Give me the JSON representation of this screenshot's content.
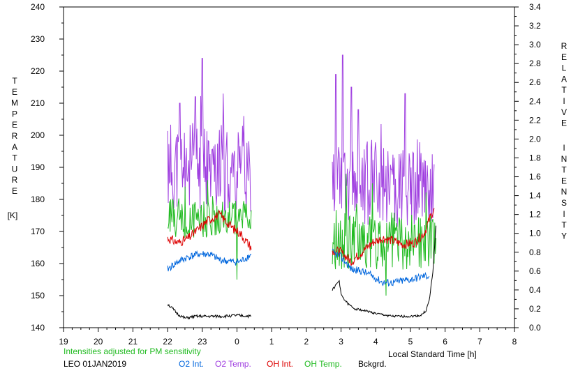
{
  "chart_data": {
    "type": "line",
    "xlabel": "Local Standard Time [h]",
    "ylabel_left": "TEMPERATURE [K]",
    "ylabel_left_letters": [
      "T",
      "E",
      "M",
      "P",
      "E",
      "R",
      "A",
      "T",
      "U",
      "R",
      "E"
    ],
    "ylabel_left_unit": "[K]",
    "ylabel_right": "RELATIVE INTENSITY",
    "ylabel_right_word1": [
      "R",
      "E",
      "L",
      "A",
      "T",
      "I",
      "V",
      "E"
    ],
    "ylabel_right_word2": [
      "I",
      "N",
      "T",
      "E",
      "N",
      "S",
      "I",
      "T",
      "Y"
    ],
    "note": "Intensities adjusted for PM sensitivity",
    "station_date": "LEO 01JAN2019",
    "xticks": [
      19,
      20,
      21,
      22,
      23,
      0,
      1,
      2,
      3,
      4,
      5,
      6,
      7,
      8
    ],
    "x_range_hours": [
      19,
      32
    ],
    "ylim_left": [
      140,
      240
    ],
    "yticks_left": [
      140,
      150,
      160,
      170,
      180,
      190,
      200,
      210,
      220,
      230,
      240
    ],
    "ylim_right": [
      0.0,
      3.4
    ],
    "yticks_right": [
      "0.0",
      "0.2",
      "0.4",
      "0.6",
      "0.8",
      "1.0",
      "1.2",
      "1.4",
      "1.6",
      "1.8",
      "2.0",
      "2.2",
      "2.4",
      "2.6",
      "2.8",
      "3.0",
      "3.2",
      "3.4"
    ],
    "legend": [
      {
        "name": "O2 Int.",
        "color": "#0066dd"
      },
      {
        "name": "O2 Temp.",
        "color": "#a040e0"
      },
      {
        "name": "OH Int.",
        "color": "#dd0000"
      },
      {
        "name": "OH Temp.",
        "color": "#22bb22"
      },
      {
        "name": "Bckgrd.",
        "color": "#000000"
      }
    ],
    "series": [
      {
        "name": "O2 Temp.",
        "color": "#a040e0",
        "axis": "left",
        "segments": [
          {
            "x0": 22.0,
            "x1": 24.42,
            "base": 190,
            "amp": 14,
            "spikes": [
              [
                23.0,
                224
              ],
              [
                22.35,
                210
              ],
              [
                22.8,
                212
              ],
              [
                23.6,
                213
              ],
              [
                24.2,
                206
              ]
            ],
            "seed": 11
          },
          {
            "x0": 26.75,
            "x1": 29.7,
            "base": 185,
            "amp": 14,
            "spikes": [
              [
                27.05,
                225
              ],
              [
                26.85,
                219
              ],
              [
                27.3,
                215
              ],
              [
                28.85,
                213
              ],
              [
                27.5,
                208
              ]
            ],
            "seed": 12
          }
        ]
      },
      {
        "name": "OH Temp.",
        "color": "#22bb22",
        "axis": "left",
        "segments": [
          {
            "x0": 22.0,
            "x1": 24.42,
            "base": 174,
            "amp": 6,
            "spikes": [
              [
                24.0,
                155
              ],
              [
                22.5,
                184
              ],
              [
                23.15,
                186
              ]
            ],
            "seed": 21
          },
          {
            "x0": 26.75,
            "x1": 29.75,
            "base": 167,
            "amp": 9,
            "spikes": [
              [
                27.15,
                188
              ],
              [
                28.3,
                150
              ],
              [
                27.9,
                185
              ]
            ],
            "seed": 22
          }
        ]
      },
      {
        "name": "OH Int.",
        "color": "#dd0000",
        "axis": "right",
        "segments": [
          {
            "x0": 22.0,
            "x1": 24.42,
            "points": [
              [
                22.0,
                0.95
              ],
              [
                22.3,
                0.9
              ],
              [
                22.6,
                0.95
              ],
              [
                22.9,
                1.05
              ],
              [
                23.2,
                1.15
              ],
              [
                23.5,
                1.2
              ],
              [
                23.7,
                1.12
              ],
              [
                23.9,
                1.05
              ],
              [
                24.1,
                1.0
              ],
              [
                24.3,
                0.9
              ],
              [
                24.42,
                0.85
              ]
            ],
            "noise": 0.05,
            "seed": 31
          },
          {
            "x0": 26.75,
            "x1": 29.7,
            "points": [
              [
                26.75,
                0.82
              ],
              [
                27.0,
                0.8
              ],
              [
                27.3,
                0.7
              ],
              [
                27.6,
                0.8
              ],
              [
                27.9,
                0.9
              ],
              [
                28.2,
                0.95
              ],
              [
                28.5,
                0.92
              ],
              [
                28.8,
                0.88
              ],
              [
                29.1,
                0.9
              ],
              [
                29.4,
                1.0
              ],
              [
                29.6,
                1.2
              ],
              [
                29.7,
                1.25
              ]
            ],
            "noise": 0.05,
            "seed": 32
          }
        ]
      },
      {
        "name": "O2 Int.",
        "color": "#0066dd",
        "axis": "right",
        "segments": [
          {
            "x0": 22.0,
            "x1": 24.42,
            "points": [
              [
                22.0,
                0.62
              ],
              [
                22.3,
                0.7
              ],
              [
                22.6,
                0.75
              ],
              [
                22.9,
                0.78
              ],
              [
                23.2,
                0.78
              ],
              [
                23.5,
                0.72
              ],
              [
                23.8,
                0.7
              ],
              [
                24.1,
                0.7
              ],
              [
                24.42,
                0.78
              ]
            ],
            "noise": 0.04,
            "seed": 41
          },
          {
            "x0": 26.75,
            "x1": 29.55,
            "points": [
              [
                26.75,
                0.8
              ],
              [
                27.0,
                0.75
              ],
              [
                27.3,
                0.62
              ],
              [
                27.6,
                0.6
              ],
              [
                27.9,
                0.55
              ],
              [
                28.2,
                0.48
              ],
              [
                28.5,
                0.48
              ],
              [
                28.8,
                0.5
              ],
              [
                29.1,
                0.52
              ],
              [
                29.4,
                0.55
              ],
              [
                29.55,
                0.55
              ]
            ],
            "noise": 0.04,
            "seed": 42
          }
        ]
      },
      {
        "name": "Bckgrd.",
        "color": "#000000",
        "axis": "right",
        "segments": [
          {
            "x0": 22.0,
            "x1": 24.42,
            "points": [
              [
                22.0,
                0.25
              ],
              [
                22.15,
                0.2
              ],
              [
                22.3,
                0.14
              ],
              [
                22.5,
                0.1
              ],
              [
                22.8,
                0.12
              ],
              [
                23.2,
                0.12
              ],
              [
                23.6,
                0.12
              ],
              [
                24.0,
                0.13
              ],
              [
                24.42,
                0.12
              ]
            ],
            "noise": 0.015,
            "seed": 51
          },
          {
            "x0": 26.75,
            "x1": 29.75,
            "points": [
              [
                26.75,
                0.4
              ],
              [
                26.85,
                0.45
              ],
              [
                26.95,
                0.5
              ],
              [
                27.0,
                0.35
              ],
              [
                27.2,
                0.25
              ],
              [
                27.4,
                0.2
              ],
              [
                27.7,
                0.18
              ],
              [
                28.0,
                0.15
              ],
              [
                28.5,
                0.12
              ],
              [
                29.0,
                0.12
              ],
              [
                29.3,
                0.13
              ],
              [
                29.45,
                0.18
              ],
              [
                29.55,
                0.3
              ],
              [
                29.65,
                0.6
              ],
              [
                29.75,
                1.15
              ]
            ],
            "noise": 0.012,
            "seed": 52
          }
        ]
      }
    ]
  }
}
